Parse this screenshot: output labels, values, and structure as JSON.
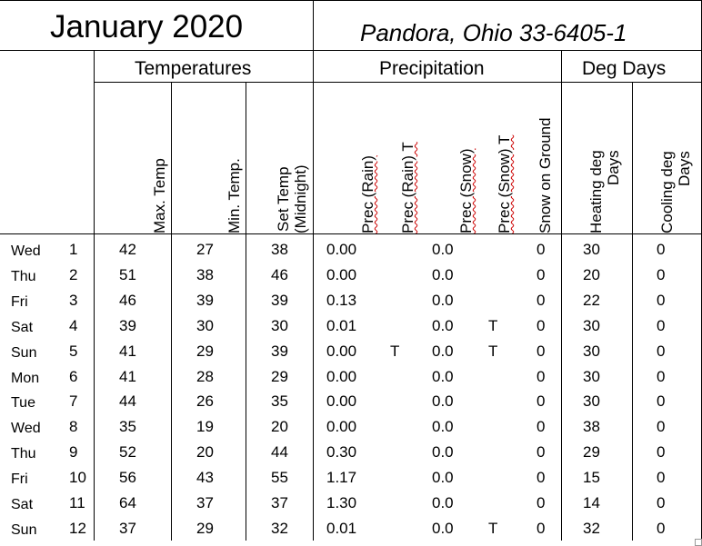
{
  "header": {
    "title": "January 2020",
    "location": "Pandora, Ohio 33-6405-1"
  },
  "groups": {
    "temperatures": "Temperatures",
    "precipitation": "Precipitation",
    "deg_days": "Deg Days"
  },
  "columns": {
    "max_temp": "Max. Temp",
    "min_temp": "Min. Temp.",
    "set_temp_1": "Set Temp",
    "set_temp_2": "(Midnight)",
    "prec_rain": "Prec (Rain)",
    "prec_rain_t": "Prec (Rain) T",
    "prec_snow": "Prec (Snow)",
    "prec_snow_t": "Prec (Snow) T",
    "snow_ground": "Snow on Ground",
    "heating_1": "Heating deg",
    "heating_2": "Days",
    "cooling_1": "Cooling deg",
    "cooling_2": "Days"
  },
  "rows": [
    {
      "dow": "Wed",
      "day": "1",
      "max": "42",
      "min": "27",
      "set": "38",
      "rain": "0.00",
      "rain_t": "",
      "snow": "0.0",
      "snow_t": "",
      "ground": "0",
      "heat": "30",
      "cool": "0"
    },
    {
      "dow": "Thu",
      "day": "2",
      "max": "51",
      "min": "38",
      "set": "46",
      "rain": "0.00",
      "rain_t": "",
      "snow": "0.0",
      "snow_t": "",
      "ground": "0",
      "heat": "20",
      "cool": "0"
    },
    {
      "dow": "Fri",
      "day": "3",
      "max": "46",
      "min": "39",
      "set": "39",
      "rain": "0.13",
      "rain_t": "",
      "snow": "0.0",
      "snow_t": "",
      "ground": "0",
      "heat": "22",
      "cool": "0"
    },
    {
      "dow": "Sat",
      "day": "4",
      "max": "39",
      "min": "30",
      "set": "30",
      "rain": "0.01",
      "rain_t": "",
      "snow": "0.0",
      "snow_t": "T",
      "ground": "0",
      "heat": "30",
      "cool": "0"
    },
    {
      "dow": "Sun",
      "day": "5",
      "max": "41",
      "min": "29",
      "set": "39",
      "rain": "0.00",
      "rain_t": "T",
      "snow": "0.0",
      "snow_t": "T",
      "ground": "0",
      "heat": "30",
      "cool": "0"
    },
    {
      "dow": "Mon",
      "day": "6",
      "max": "41",
      "min": "28",
      "set": "29",
      "rain": "0.00",
      "rain_t": "",
      "snow": "0.0",
      "snow_t": "",
      "ground": "0",
      "heat": "30",
      "cool": "0"
    },
    {
      "dow": "Tue",
      "day": "7",
      "max": "44",
      "min": "26",
      "set": "35",
      "rain": "0.00",
      "rain_t": "",
      "snow": "0.0",
      "snow_t": "",
      "ground": "0",
      "heat": "30",
      "cool": "0"
    },
    {
      "dow": "Wed",
      "day": "8",
      "max": "35",
      "min": "19",
      "set": "20",
      "rain": "0.00",
      "rain_t": "",
      "snow": "0.0",
      "snow_t": "",
      "ground": "0",
      "heat": "38",
      "cool": "0"
    },
    {
      "dow": "Thu",
      "day": "9",
      "max": "52",
      "min": "20",
      "set": "44",
      "rain": "0.30",
      "rain_t": "",
      "snow": "0.0",
      "snow_t": "",
      "ground": "0",
      "heat": "29",
      "cool": "0"
    },
    {
      "dow": "Fri",
      "day": "10",
      "max": "56",
      "min": "43",
      "set": "55",
      "rain": "1.17",
      "rain_t": "",
      "snow": "0.0",
      "snow_t": "",
      "ground": "0",
      "heat": "15",
      "cool": "0"
    },
    {
      "dow": "Sat",
      "day": "11",
      "max": "64",
      "min": "37",
      "set": "37",
      "rain": "1.30",
      "rain_t": "",
      "snow": "0.0",
      "snow_t": "",
      "ground": "0",
      "heat": "14",
      "cool": "0"
    },
    {
      "dow": "Sun",
      "day": "12",
      "max": "37",
      "min": "29",
      "set": "32",
      "rain": "0.01",
      "rain_t": "",
      "snow": "0.0",
      "snow_t": "T",
      "ground": "0",
      "heat": "32",
      "cool": "0"
    }
  ]
}
